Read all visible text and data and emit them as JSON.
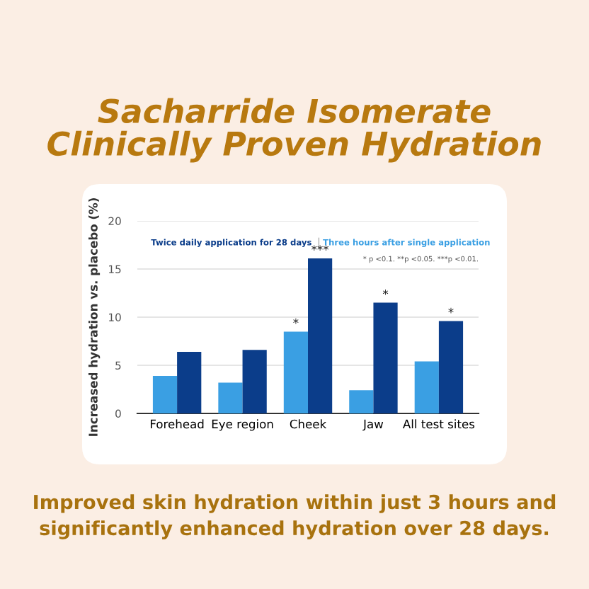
{
  "chart_data": {
    "type": "bar",
    "title": "Sacharride Isomerate\nClinically Proven Hydration",
    "ylabel": "Increased hydration vs. placebo (%)",
    "categories": [
      "Forehead",
      "Eye region",
      "Cheek",
      "Jaw",
      "All test sites"
    ],
    "series": [
      {
        "name": "Three hours after single application",
        "color": "#3a9fe3",
        "values": [
          3.9,
          3.2,
          8.5,
          2.4,
          5.4
        ]
      },
      {
        "name": "Twice daily application for 28 days",
        "color": "#0b3d8a",
        "values": [
          6.4,
          6.6,
          16.1,
          11.5,
          9.6
        ]
      }
    ],
    "ylim": [
      0,
      20
    ],
    "yticks": [
      0,
      5,
      10,
      15,
      20
    ],
    "grid": "y",
    "annotations": [
      "* p <0.1. **p <0.05. ***p <0.01.",
      "Improved skin hydration within just 3 hours and significantly enhanced hydration over 28 days.",
      {
        "text": "*",
        "x": "Cheek",
        "y": 8.5
      },
      {
        "text": "***",
        "x": "Cheek",
        "y": 16.1
      },
      {
        "text": "*",
        "x": "Jaw",
        "y": 11.5
      },
      {
        "text": "*",
        "x": "All test sites",
        "y": 9.6
      }
    ]
  }
}
